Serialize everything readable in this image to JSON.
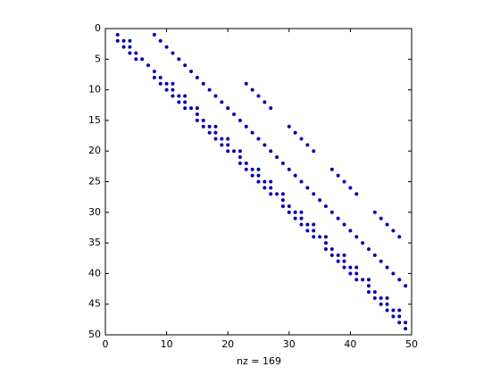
{
  "chart_data": {
    "type": "scatter",
    "xlabel": "nz = 169",
    "color": "#0000b4",
    "x": [
      2,
      3,
      4,
      5,
      6,
      7,
      8,
      9,
      10,
      11,
      12,
      13,
      14,
      15,
      16,
      17,
      18,
      19,
      20,
      21,
      22,
      23,
      24,
      25,
      26,
      27,
      28,
      29,
      30,
      31,
      32,
      33,
      34,
      35,
      36,
      37,
      38,
      39,
      40,
      41,
      42,
      43,
      44,
      45,
      46,
      47,
      48,
      49,
      2,
      3,
      4,
      5,
      8,
      9,
      10,
      11,
      12,
      13,
      15,
      16,
      17,
      18,
      19,
      20,
      22,
      23,
      24,
      25,
      26,
      27,
      29,
      30,
      31,
      32,
      33,
      34,
      36,
      37,
      38,
      39,
      40,
      41,
      43,
      44,
      45,
      46,
      47,
      48,
      49,
      4,
      11,
      13,
      15,
      18,
      20,
      22,
      25,
      27,
      29,
      32,
      34,
      36,
      39,
      41,
      43,
      46,
      48,
      8,
      9,
      10,
      11,
      12,
      13,
      14,
      15,
      16,
      17,
      18,
      19,
      20,
      21,
      22,
      23,
      24,
      25,
      26,
      27,
      28,
      29,
      30,
      31,
      32,
      33,
      34,
      35,
      36,
      37,
      38,
      39,
      40,
      41,
      42,
      43,
      44,
      45,
      46,
      47,
      48,
      49,
      23,
      24,
      25,
      26,
      27,
      30,
      31,
      32,
      33,
      34,
      37,
      38,
      39,
      40,
      41,
      44,
      45,
      46,
      47,
      48
    ],
    "values": [
      1,
      2,
      3,
      4,
      5,
      6,
      7,
      8,
      9,
      10,
      11,
      12,
      13,
      14,
      15,
      16,
      17,
      18,
      19,
      20,
      21,
      22,
      23,
      24,
      25,
      26,
      27,
      28,
      29,
      30,
      31,
      32,
      33,
      34,
      35,
      36,
      37,
      38,
      39,
      40,
      41,
      42,
      43,
      44,
      45,
      46,
      47,
      48,
      2,
      3,
      4,
      5,
      8,
      9,
      10,
      11,
      12,
      13,
      15,
      16,
      17,
      18,
      19,
      20,
      22,
      23,
      24,
      25,
      26,
      27,
      29,
      30,
      31,
      32,
      33,
      34,
      36,
      37,
      38,
      39,
      40,
      41,
      43,
      44,
      45,
      46,
      47,
      48,
      49,
      2,
      9,
      11,
      13,
      16,
      18,
      20,
      23,
      25,
      27,
      30,
      32,
      34,
      37,
      39,
      41,
      44,
      46,
      1,
      2,
      3,
      4,
      5,
      6,
      7,
      8,
      9,
      10,
      11,
      12,
      13,
      14,
      15,
      16,
      17,
      18,
      19,
      20,
      21,
      22,
      23,
      24,
      25,
      26,
      27,
      28,
      29,
      30,
      31,
      32,
      33,
      34,
      35,
      36,
      37,
      38,
      39,
      40,
      41,
      42,
      9,
      10,
      11,
      12,
      13,
      16,
      17,
      18,
      19,
      20,
      23,
      24,
      25,
      26,
      27,
      30,
      31,
      32,
      33,
      34
    ],
    "xlim": [
      0,
      50
    ],
    "ylim": [
      0,
      50
    ],
    "y_reversed": true,
    "xticks": [
      0,
      10,
      20,
      30,
      40,
      50
    ],
    "yticks": [
      0,
      5,
      10,
      15,
      20,
      25,
      30,
      35,
      40,
      45,
      50
    ]
  }
}
